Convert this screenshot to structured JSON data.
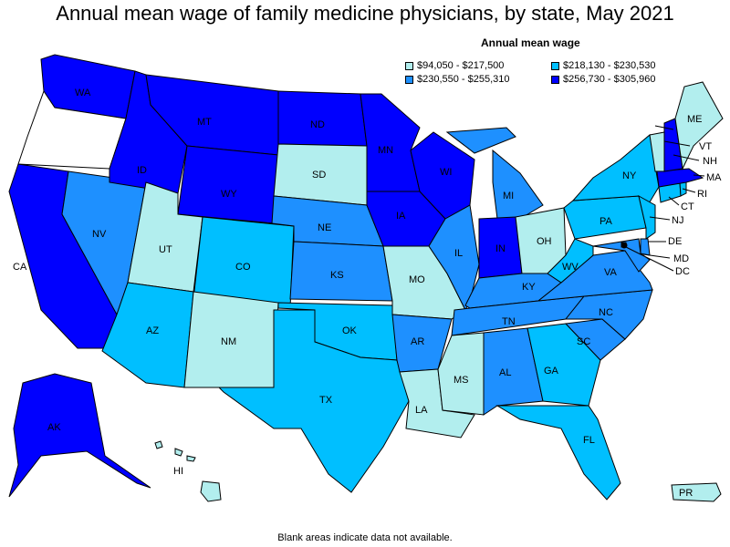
{
  "title": "Annual mean wage of family medicine physicians, by state, May 2021",
  "legend": {
    "title": "Annual mean wage",
    "bins": [
      {
        "label": "$94,050 - $217,500",
        "color": "#b2eeee"
      },
      {
        "label": "$218,130 - $230,530",
        "color": "#00bfff"
      },
      {
        "label": "$230,550 - $255,310",
        "color": "#1e90ff"
      },
      {
        "label": "$256,730 - $305,960",
        "color": "#0000ff"
      }
    ]
  },
  "footnote": "Blank areas indicate data not available.",
  "states": {
    "WA": {
      "label": "WA",
      "bin": 3
    },
    "OR": {
      "label": "",
      "bin": -1
    },
    "CA": {
      "label": "CA",
      "bin": 3
    },
    "NV": {
      "label": "NV",
      "bin": 2
    },
    "ID": {
      "label": "ID",
      "bin": 3
    },
    "MT": {
      "label": "MT",
      "bin": 3
    },
    "WY": {
      "label": "WY",
      "bin": 3
    },
    "UT": {
      "label": "UT",
      "bin": 0
    },
    "AZ": {
      "label": "AZ",
      "bin": 1
    },
    "CO": {
      "label": "CO",
      "bin": 1
    },
    "NM": {
      "label": "NM",
      "bin": 0
    },
    "ND": {
      "label": "ND",
      "bin": 3
    },
    "SD": {
      "label": "SD",
      "bin": 0
    },
    "NE": {
      "label": "NE",
      "bin": 2
    },
    "KS": {
      "label": "KS",
      "bin": 2
    },
    "OK": {
      "label": "OK",
      "bin": 1
    },
    "TX": {
      "label": "TX",
      "bin": 1
    },
    "MN": {
      "label": "MN",
      "bin": 3
    },
    "IA": {
      "label": "IA",
      "bin": 3
    },
    "MO": {
      "label": "MO",
      "bin": 0
    },
    "AR": {
      "label": "AR",
      "bin": 2
    },
    "LA": {
      "label": "LA",
      "bin": 0
    },
    "WI": {
      "label": "WI",
      "bin": 3
    },
    "IL": {
      "label": "IL",
      "bin": 2
    },
    "MI": {
      "label": "MI",
      "bin": 2
    },
    "IN": {
      "label": "IN",
      "bin": 3
    },
    "OH": {
      "label": "OH",
      "bin": 0
    },
    "KY": {
      "label": "KY",
      "bin": 2
    },
    "TN": {
      "label": "TN",
      "bin": 2
    },
    "MS": {
      "label": "MS",
      "bin": 0
    },
    "AL": {
      "label": "AL",
      "bin": 2
    },
    "GA": {
      "label": "GA",
      "bin": 1
    },
    "FL": {
      "label": "FL",
      "bin": 1
    },
    "SC": {
      "label": "SC",
      "bin": 2
    },
    "NC": {
      "label": "NC",
      "bin": 2
    },
    "VA": {
      "label": "VA",
      "bin": 2
    },
    "WV": {
      "label": "WV",
      "bin": 1
    },
    "PA": {
      "label": "PA",
      "bin": 1
    },
    "NY": {
      "label": "NY",
      "bin": 1
    },
    "NJ": {
      "label": "NJ",
      "bin": 1
    },
    "DE": {
      "label": "DE",
      "bin": 2
    },
    "MD": {
      "label": "MD",
      "bin": 2
    },
    "DC": {
      "label": "DC",
      "bin": 3
    },
    "CT": {
      "label": "CT",
      "bin": 1
    },
    "RI": {
      "label": "RI",
      "bin": 1
    },
    "MA": {
      "label": "MA",
      "bin": 3
    },
    "VT": {
      "label": "VT",
      "bin": 0
    },
    "NH": {
      "label": "NH",
      "bin": 3
    },
    "ME": {
      "label": "ME",
      "bin": 0
    },
    "AK": {
      "label": "AK",
      "bin": 3
    },
    "HI": {
      "label": "HI",
      "bin": 0
    },
    "PR": {
      "label": "PR",
      "bin": 0
    }
  }
}
